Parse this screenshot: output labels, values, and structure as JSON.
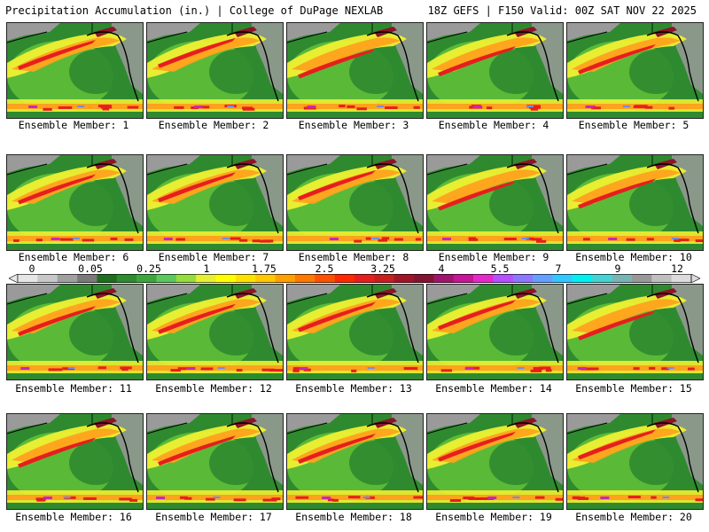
{
  "header": {
    "title": "Precipitation Accumulation (in.) | College of DuPage NEXLAB",
    "run_info": "18Z GEFS | F150 Valid: 00Z SAT NOV 22 2025"
  },
  "members": [
    {
      "label": "Ensemble Member: 1"
    },
    {
      "label": "Ensemble Member: 2"
    },
    {
      "label": "Ensemble Member: 3"
    },
    {
      "label": "Ensemble Member: 4"
    },
    {
      "label": "Ensemble Member: 5"
    },
    {
      "label": "Ensemble Member: 6"
    },
    {
      "label": "Ensemble Member: 7"
    },
    {
      "label": "Ensemble Member: 8"
    },
    {
      "label": "Ensemble Member: 9"
    },
    {
      "label": "Ensemble Member: 10"
    },
    {
      "label": "Ensemble Member: 11"
    },
    {
      "label": "Ensemble Member: 12"
    },
    {
      "label": "Ensemble Member: 13"
    },
    {
      "label": "Ensemble Member: 14"
    },
    {
      "label": "Ensemble Member: 15"
    },
    {
      "label": "Ensemble Member: 16"
    },
    {
      "label": "Ensemble Member: 17"
    },
    {
      "label": "Ensemble Member: 18"
    },
    {
      "label": "Ensemble Member: 19"
    },
    {
      "label": "Ensemble Member: 20"
    }
  ],
  "colorbar": {
    "tick_labels": [
      "0",
      "0.05",
      "0.25",
      "1",
      "1.75",
      "2.5",
      "3.25",
      "4",
      "5.5",
      "7",
      "9",
      "12"
    ],
    "colors": [
      "#e6e6e6",
      "#c8c8c8",
      "#a0a0a0",
      "#7a7a7a",
      "#1e6e1e",
      "#2d8c2d",
      "#3ca63c",
      "#5ac85a",
      "#96dc3c",
      "#e6f032",
      "#ffff00",
      "#ffe100",
      "#ffc800",
      "#ffa000",
      "#ff7800",
      "#ff5000",
      "#ff2800",
      "#e61e1e",
      "#c81e1e",
      "#a01428",
      "#821432",
      "#a0146e",
      "#c81496",
      "#e628c8",
      "#b450ff",
      "#8c78ff",
      "#64a0ff",
      "#32c8ff",
      "#00f0f0",
      "#46d2d2",
      "#78b4b4",
      "#999999",
      "#bfbfbf",
      "#dcdcdc"
    ]
  },
  "map_colors": {
    "land_gray": "#9a9a9a",
    "base_green": "#2f8a2f",
    "light_green": "#5fbf3a",
    "yellow": "#f0f032",
    "orange": "#ffa21e",
    "red": "#e61e1e",
    "dark_red": "#8c1428",
    "magenta": "#c828b4",
    "blue": "#6e8cff"
  }
}
